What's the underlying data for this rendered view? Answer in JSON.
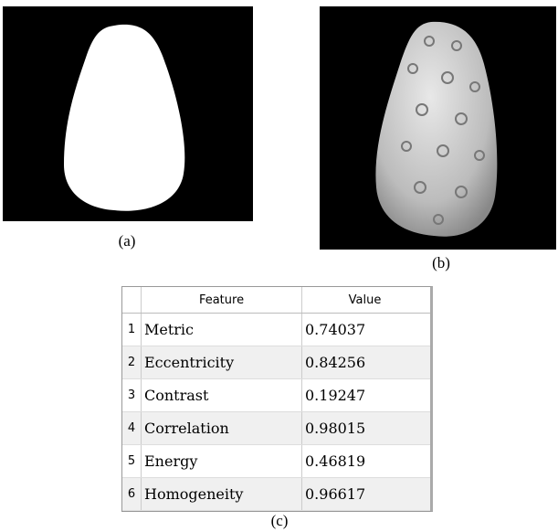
{
  "figure": {
    "panels": [
      {
        "caption": "(a)"
      },
      {
        "caption": "(b)"
      }
    ],
    "table": {
      "caption": "(c)",
      "columns": [
        "Feature",
        "Value"
      ],
      "rows": [
        [
          "1",
          "Metric",
          "0.74037"
        ],
        [
          "2",
          "Eccentricity",
          "0.84256"
        ],
        [
          "3",
          "Contrast",
          "0.19247"
        ],
        [
          "4",
          "Correlation",
          "0.98015"
        ],
        [
          "5",
          "Energy",
          "0.46819"
        ],
        [
          "6",
          "Homogeneity",
          "0.96617"
        ]
      ]
    }
  }
}
